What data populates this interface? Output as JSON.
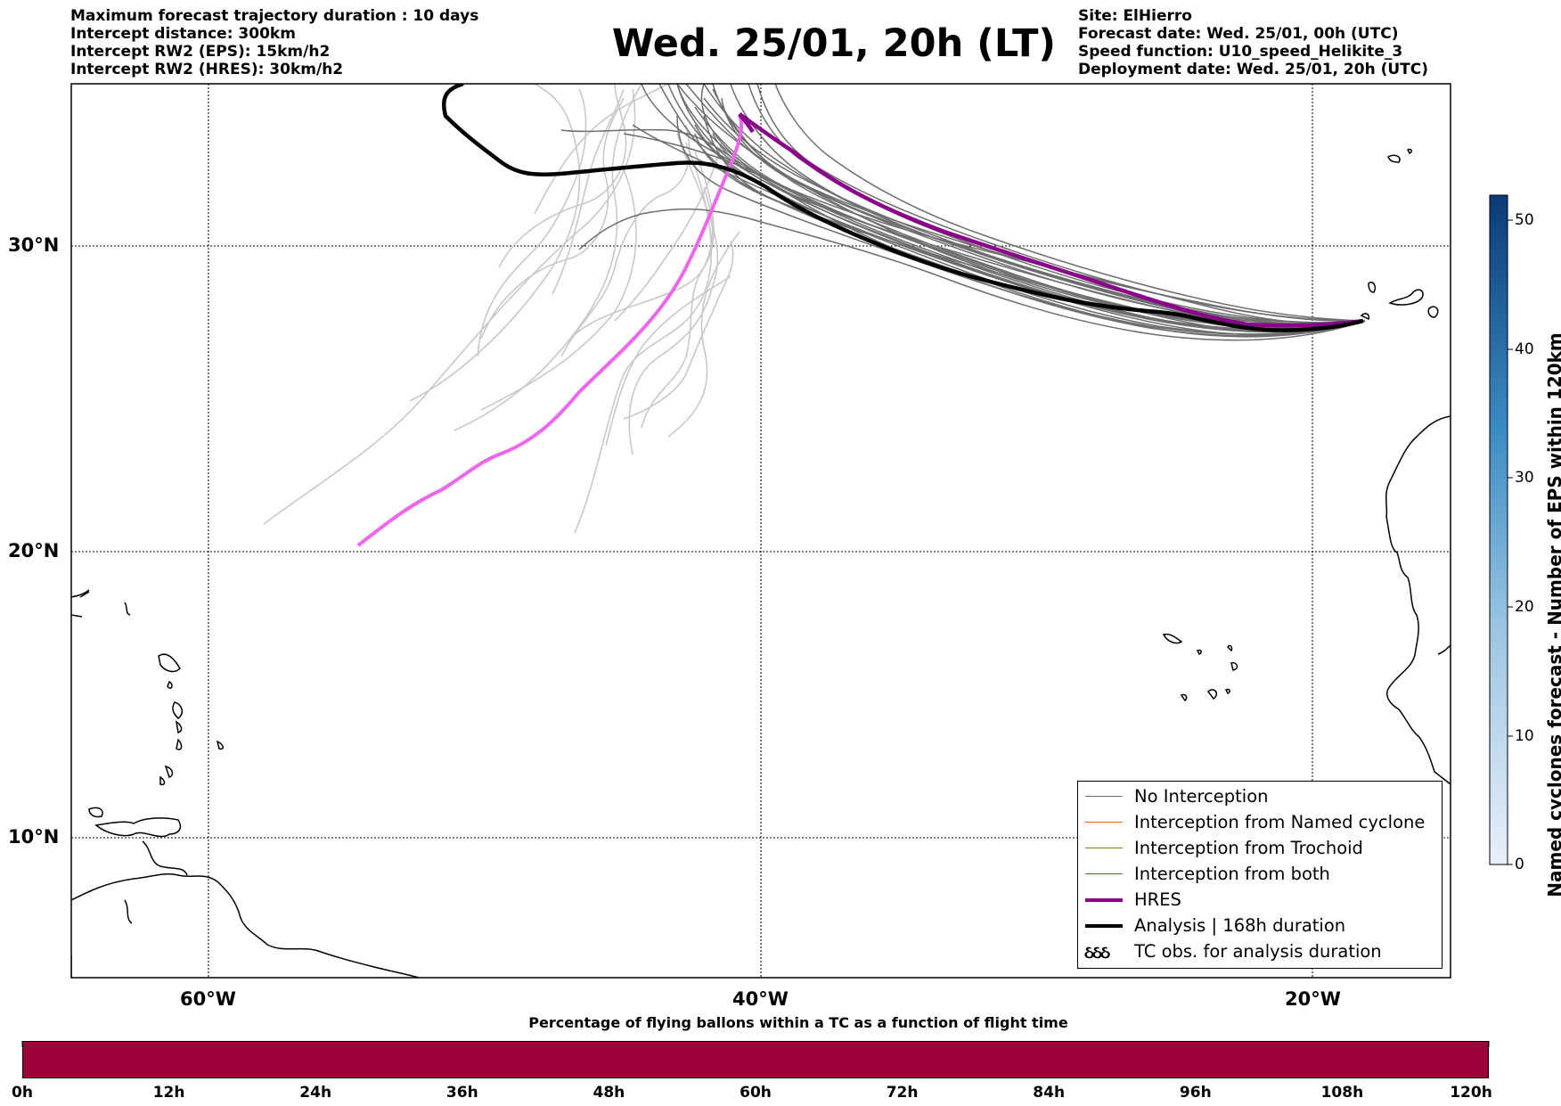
{
  "header": {
    "left": [
      "Maximum forecast trajectory duration : 10 days",
      "Intercept distance: 300km",
      "Intercept RW2 (EPS):  15km/h2",
      "Intercept RW2 (HRES): 30km/h2"
    ],
    "title": "Wed. 25/01, 20h (LT)",
    "right": [
      "Site: ElHierro",
      "Forecast date: Wed. 25/01, 00h (UTC)",
      "Speed function: U10_speed_Helikite_3",
      "Deployment date: Wed. 25/01, 20h (UTC)"
    ]
  },
  "map": {
    "lat_labels": [
      "30°N",
      "20°N",
      "10°N"
    ],
    "lon_labels": [
      "60°W",
      "40°W",
      "20°W"
    ],
    "colors": {
      "no_interception": "#6e6e6e",
      "named_cyclone": "#ff5a1a",
      "trochoid": "#808000",
      "both": "#228b22",
      "hres": "#8b008b",
      "analysis": "#000000",
      "eps_faint": "#c8c8c8",
      "hres_faint": "#ee66ee"
    }
  },
  "legend": {
    "items": [
      {
        "label": "No Interception",
        "color": "#6e6e6e",
        "width": 1
      },
      {
        "label": "Interception from Named cyclone",
        "color": "#ff5a1a",
        "width": 1
      },
      {
        "label": "Interception from Trochoid",
        "color": "#808000",
        "width": 1
      },
      {
        "label": "Interception from both",
        "color": "#228b22",
        "width": 1
      },
      {
        "label": "HRES",
        "color": "#8b008b",
        "width": 4
      },
      {
        "label": "Analysis | 168h duration",
        "color": "#000000",
        "width": 4
      },
      {
        "label": "TC obs. for analysis duration",
        "icon": "ઠઠઠ"
      }
    ]
  },
  "colorbar": {
    "label": "Named cyclones forecast - Number of EPS within 120km",
    "ticks": [
      "0",
      "10",
      "20",
      "30",
      "40",
      "50"
    ],
    "range": [
      0,
      52
    ]
  },
  "time_bar": {
    "title": "Percentage of flying ballons within a TC as a function of flight time",
    "ticks": [
      "0h",
      "12h",
      "24h",
      "36h",
      "48h",
      "60h",
      "72h",
      "84h",
      "96h",
      "108h",
      "120h"
    ],
    "color": "#9e003a"
  }
}
